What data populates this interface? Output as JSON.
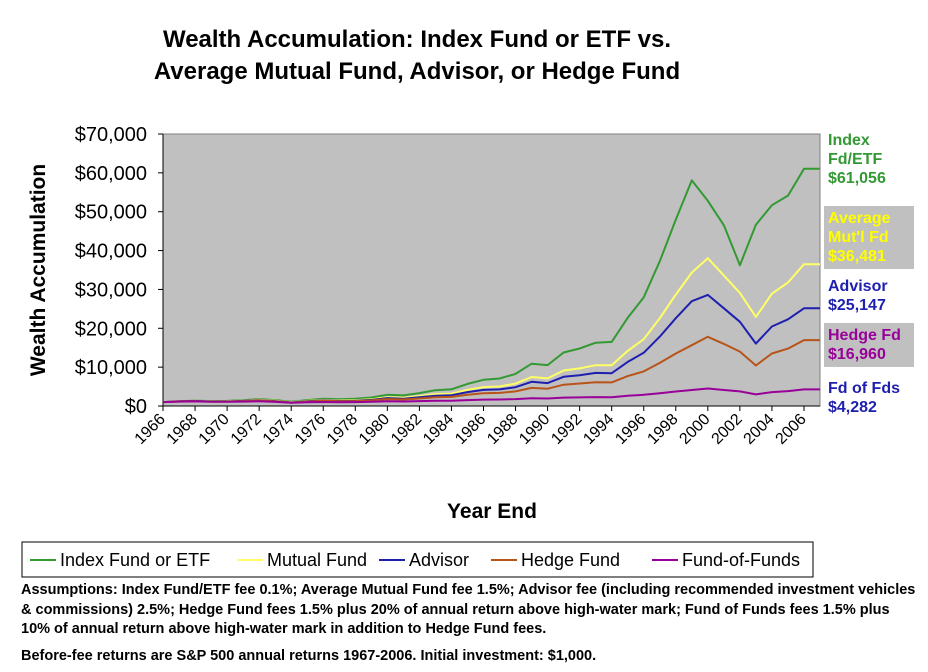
{
  "chart_data": {
    "type": "line",
    "title": [
      "Wealth Accumulation: Index Fund or ETF vs.",
      "Average Mutual Fund, Advisor, or Hedge Fund"
    ],
    "xlabel": "Year End",
    "ylabel": "Wealth Accumulation",
    "ylim": [
      0,
      70000
    ],
    "yticks": [
      "$0",
      "$10,000",
      "$20,000",
      "$30,000",
      "$40,000",
      "$50,000",
      "$60,000",
      "$70,000"
    ],
    "xtick_labels": [
      "1966",
      "1968",
      "1970",
      "1972",
      "1974",
      "1976",
      "1978",
      "1980",
      "1982",
      "1984",
      "1986",
      "1988",
      "1990",
      "1992",
      "1994",
      "1996",
      "1998",
      "2000",
      "2002",
      "2004",
      "2006"
    ],
    "x": [
      1966,
      1967,
      1968,
      1969,
      1970,
      1971,
      1972,
      1973,
      1974,
      1975,
      1976,
      1977,
      1978,
      1979,
      1980,
      1981,
      1982,
      1983,
      1984,
      1985,
      1986,
      1987,
      1988,
      1989,
      1990,
      1991,
      1992,
      1993,
      1994,
      1995,
      1996,
      1997,
      1998,
      1999,
      2000,
      2001,
      2002,
      2003,
      2004,
      2005,
      2006,
      2007
    ],
    "plot_background": "#c0c0c0",
    "legend_position": "bottom",
    "series": [
      {
        "name": "Index Fund or ETF",
        "color": "#339933",
        "end_label": [
          "Index",
          "Fd/ETF",
          "$61,056"
        ],
        "values": [
          1000,
          1239,
          1378,
          1258,
          1307,
          1491,
          1771,
          1507,
          1102,
          1513,
          1871,
          1736,
          1850,
          2187,
          2888,
          2738,
          3327,
          4063,
          4310,
          5683,
          6743,
          7087,
          8258,
          10876,
          10532,
          13756,
          14796,
          16298,
          16504,
          22700,
          27950,
          37270,
          47960,
          58070,
          52800,
          46510,
          36240,
          46620,
          51680,
          54150,
          61056,
          61056
        ]
      },
      {
        "name": "Mutual Fund",
        "color": "#ffff66",
        "end_label": [
          "Average",
          "Mut'l Fd",
          "$36,481"
        ],
        "values": [
          1000,
          1220,
          1330,
          1190,
          1215,
          1361,
          1590,
          1330,
          960,
          1300,
          1580,
          1440,
          1510,
          1750,
          2270,
          2120,
          2540,
          3050,
          3200,
          4150,
          4860,
          5030,
          5760,
          7460,
          7100,
          9130,
          9680,
          10500,
          10470,
          14190,
          17200,
          22600,
          28670,
          34330,
          38030,
          33560,
          29100,
          22920,
          28900,
          31780,
          36481,
          36481
        ]
      },
      {
        "name": "Advisor",
        "color": "#1f1faf",
        "end_label": [
          "Advisor",
          "$25,147"
        ],
        "values": [
          1000,
          1207,
          1310,
          1158,
          1170,
          1300,
          1504,
          1250,
          895,
          1200,
          1450,
          1310,
          1370,
          1580,
          2030,
          1890,
          2230,
          2660,
          2780,
          3570,
          4150,
          4260,
          4830,
          6230,
          5890,
          7520,
          7920,
          8510,
          8430,
          11350,
          13690,
          17850,
          22600,
          26970,
          28580,
          25140,
          21680,
          16050,
          20450,
          22320,
          25147,
          25147
        ]
      },
      {
        "name": "Hedge Fund",
        "color": "#b8541a",
        "end_label": [
          "Hedge Fd",
          "$16,960"
        ],
        "values": [
          1000,
          1180,
          1270,
          1130,
          1140,
          1250,
          1420,
          1190,
          870,
          1130,
          1330,
          1230,
          1270,
          1430,
          1780,
          1680,
          1930,
          2250,
          2330,
          2890,
          3300,
          3380,
          3760,
          4670,
          4450,
          5490,
          5780,
          6100,
          6080,
          7700,
          8900,
          11100,
          13500,
          15650,
          17800,
          15970,
          13990,
          10430,
          13500,
          14760,
          16960,
          16960
        ]
      },
      {
        "name": "Fund-of-Funds",
        "color": "#990099",
        "end_label": [
          "Fd of Fds",
          "$4,282"
        ],
        "values": [
          1000,
          1130,
          1190,
          1070,
          1080,
          1130,
          1220,
          1060,
          820,
          960,
          1040,
          990,
          1010,
          1080,
          1200,
          1160,
          1260,
          1360,
          1370,
          1530,
          1650,
          1670,
          1770,
          2000,
          1940,
          2170,
          2220,
          2280,
          2260,
          2630,
          2870,
          3290,
          3740,
          4130,
          4500,
          4110,
          3750,
          2990,
          3590,
          3830,
          4282,
          4282
        ]
      }
    ]
  },
  "notes": {
    "assumptions": "Assumptions: Index Fund/ETF fee 0.1%; Average Mutual Fund fee 1.5%; Advisor fee (including recommended investment vehicles & commissions) 2.5%; Hedge Fund fees 1.5% plus 20% of annual return above high-water mark; Fund of Funds fees 1.5% plus 10% of annual return above high-water mark in addition to Hedge Fund fees.",
    "returns": "Before-fee returns are S&P 500 annual returns 1967-2006. Initial investment: $1,000."
  },
  "colors": {
    "plot_background": "#c0c0c0",
    "end_label_box": "#c0c0c0",
    "index_label": "#339933",
    "mutual_label": "#ffff00",
    "advisor_label": "#1f1faf",
    "hedge_label": "#990099",
    "fof_label": "#1f1faf"
  }
}
